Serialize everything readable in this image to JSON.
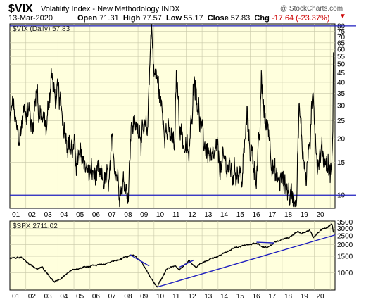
{
  "header": {
    "symbol": "$VIX",
    "name": "Volatility Index - New Methodology",
    "exchange": "INDX",
    "brand": "@ StockCharts.com",
    "date": "13-Mar-2020",
    "open_label": "Open",
    "open": "71.31",
    "high_label": "High",
    "high": "77.57",
    "low_label": "Low",
    "low": "55.17",
    "close_label": "Close",
    "close": "57.83",
    "chg_label": "Chg",
    "chg": "-17.64 (-23.37%)",
    "chg_arrow": "▼"
  },
  "colors": {
    "panel_bg": "#ffffdd",
    "price_line": "#000000",
    "reference_line": "#1f1fbf",
    "grid": "#c8c8a8",
    "arrow": "#cc0000"
  },
  "chart_data": [
    {
      "type": "line",
      "legend": "$VIX (Daily) 57.83",
      "scale": "log",
      "x_tick_labels": [
        "01",
        "02",
        "03",
        "04",
        "05",
        "06",
        "07",
        "08",
        "09",
        "10",
        "11",
        "12",
        "13",
        "14",
        "15",
        "16",
        "17",
        "18",
        "19",
        "20"
      ],
      "y_ticks": [
        10,
        15,
        20,
        25,
        30,
        35,
        40,
        45,
        50,
        55,
        60,
        65,
        70,
        75,
        80
      ],
      "ylim": [
        8.5,
        82
      ],
      "xlim": [
        2000.0,
        2020.3
      ],
      "horizontal_lines": [
        10,
        80
      ],
      "series": [
        {
          "x": [
            2000.0,
            2000.2,
            2000.4,
            2000.6,
            2000.8,
            2001.0,
            2001.2,
            2001.4,
            2001.6,
            2001.7,
            2001.8,
            2002.0,
            2002.3,
            2002.5,
            2002.6,
            2002.8,
            2003.0,
            2003.2,
            2003.5,
            2003.8,
            2004.0,
            2004.3,
            2004.6,
            2004.9,
            2005.2,
            2005.6,
            2005.9,
            2006.2,
            2006.4,
            2006.7,
            2006.9,
            2007.2,
            2007.4,
            2007.6,
            2007.9,
            2008.0,
            2008.3,
            2008.6,
            2008.75,
            2008.85,
            2009.0,
            2009.2,
            2009.5,
            2009.8,
            2010.0,
            2010.3,
            2010.4,
            2010.6,
            2010.9,
            2011.2,
            2011.5,
            2011.6,
            2011.8,
            2012.0,
            2012.4,
            2012.6,
            2012.9,
            2013.2,
            2013.5,
            2013.9,
            2014.2,
            2014.5,
            2014.8,
            2015.0,
            2015.4,
            2015.6,
            2015.7,
            2016.0,
            2016.1,
            2016.4,
            2016.6,
            2016.9,
            2017.2,
            2017.5,
            2017.9,
            2018.05,
            2018.2,
            2018.5,
            2018.8,
            2018.95,
            2019.2,
            2019.5,
            2019.8,
            2020.0,
            2020.1,
            2020.17,
            2020.2
          ],
          "y": [
            24,
            31,
            22,
            20,
            26,
            30,
            28,
            23,
            33,
            42,
            26,
            25,
            23,
            37,
            45,
            33,
            34,
            29,
            22,
            18,
            17,
            15,
            16,
            13,
            13,
            12,
            12,
            11.5,
            18,
            13,
            11,
            12,
            10.5,
            25,
            22,
            25,
            20,
            22,
            60,
            80,
            45,
            42,
            28,
            22,
            20,
            18,
            45,
            25,
            18,
            16,
            45,
            40,
            28,
            20,
            17,
            14,
            17,
            14,
            15,
            13,
            14,
            12,
            26,
            18,
            13,
            20,
            40,
            22,
            25,
            15,
            12,
            12,
            11.5,
            10,
            10,
            30,
            20,
            13,
            22,
            35,
            15,
            17,
            15,
            13,
            14,
            25,
            57.83
          ],
          "name": "$VIX"
        }
      ]
    },
    {
      "type": "line",
      "legend": "$SPX 2711.02",
      "scale": "log",
      "x_tick_labels": [
        "01",
        "02",
        "03",
        "04",
        "05",
        "06",
        "07",
        "08",
        "09",
        "10",
        "11",
        "12",
        "13",
        "14",
        "15",
        "16",
        "17",
        "18",
        "19",
        "20"
      ],
      "y_ticks": [
        1000,
        1500,
        2000,
        2500,
        3000,
        3500
      ],
      "ylim": [
        650,
        3600
      ],
      "xlim": [
        2000.0,
        2020.3
      ],
      "series": [
        {
          "x": [
            2000.0,
            2000.7,
            2001.0,
            2001.7,
            2002.0,
            2002.5,
            2002.8,
            2003.2,
            2003.8,
            2004.5,
            2005.5,
            2006.5,
            2007.0,
            2007.5,
            2007.8,
            2008.2,
            2008.75,
            2009.2,
            2009.8,
            2010.3,
            2010.6,
            2011.2,
            2011.6,
            2011.9,
            2012.5,
            2013.0,
            2013.5,
            2014.0,
            2014.8,
            2015.4,
            2015.7,
            2016.1,
            2016.6,
            2017.0,
            2017.5,
            2018.0,
            2018.2,
            2018.7,
            2018.95,
            2019.4,
            2019.8,
            2020.1,
            2020.2
          ],
          "y": [
            1420,
            1480,
            1320,
            1080,
            1150,
            900,
            800,
            860,
            1050,
            1130,
            1210,
            1320,
            1430,
            1530,
            1520,
            1330,
            900,
            700,
            1100,
            1180,
            1080,
            1350,
            1130,
            1250,
            1400,
            1500,
            1650,
            1850,
            2000,
            2100,
            1920,
            1870,
            2150,
            2270,
            2450,
            2800,
            2620,
            2900,
            2400,
            2900,
            3050,
            3390,
            2711.02
          ],
          "name": "$SPX"
        }
      ]
    }
  ]
}
